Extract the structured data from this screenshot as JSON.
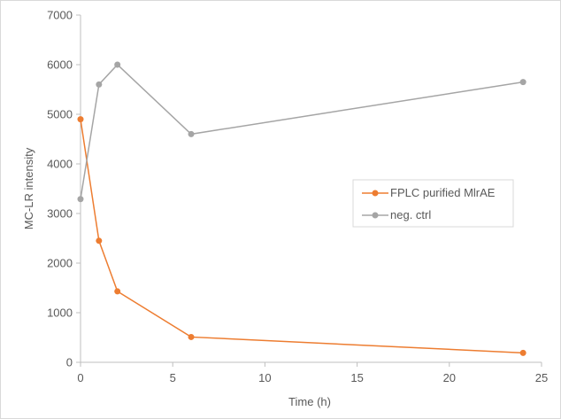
{
  "chart_data": {
    "type": "line",
    "title": "",
    "xlabel": "Time (h)",
    "ylabel": "MC-LR intensity",
    "xlim": [
      0,
      25
    ],
    "ylim": [
      0,
      7000
    ],
    "xticks": [
      "0",
      "5",
      "10",
      "15",
      "20",
      "25"
    ],
    "yticks": [
      "0",
      "1000",
      "2000",
      "3000",
      "4000",
      "5000",
      "6000",
      "7000"
    ],
    "grid": false,
    "legend_position": "right",
    "series": [
      {
        "name": "FPLC purified MlrAE",
        "color": "#ED7D31",
        "x": [
          0,
          1,
          2,
          6,
          24
        ],
        "y": [
          4900,
          2450,
          1430,
          510,
          190
        ]
      },
      {
        "name": "neg. ctrl",
        "color": "#A5A5A5",
        "x": [
          0,
          1,
          2,
          6,
          24
        ],
        "y": [
          3290,
          5600,
          6000,
          4600,
          5650
        ]
      }
    ]
  }
}
